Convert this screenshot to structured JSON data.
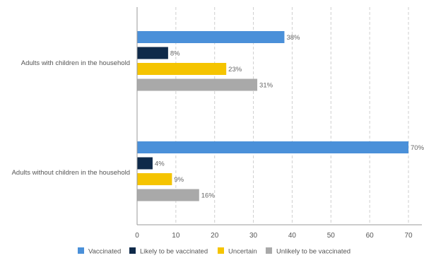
{
  "chart_data": {
    "type": "bar",
    "orientation": "horizontal",
    "categories": [
      "Adults with children in the household",
      "Adults without children in the household"
    ],
    "series": [
      {
        "name": "Vaccinated",
        "color": "#4a90d9",
        "values": [
          38,
          70
        ],
        "labels": [
          "38%",
          "70%"
        ]
      },
      {
        "name": "Likely to be vaccinated",
        "color": "#0f2a4a",
        "values": [
          8,
          4
        ],
        "labels": [
          "8%",
          "4%"
        ]
      },
      {
        "name": "Uncertain",
        "color": "#f5c400",
        "values": [
          23,
          9
        ],
        "labels": [
          "23%",
          "9%"
        ]
      },
      {
        "name": "Unlikely to be vaccinated",
        "color": "#a9a9a9",
        "values": [
          31,
          16
        ],
        "labels": [
          "31%",
          "16%"
        ]
      }
    ],
    "x_ticks": [
      "0",
      "10",
      "20",
      "30",
      "40",
      "50",
      "60",
      "70"
    ],
    "xlim": [
      0,
      70
    ],
    "grid": "vertical dashed",
    "legend_position": "bottom"
  }
}
